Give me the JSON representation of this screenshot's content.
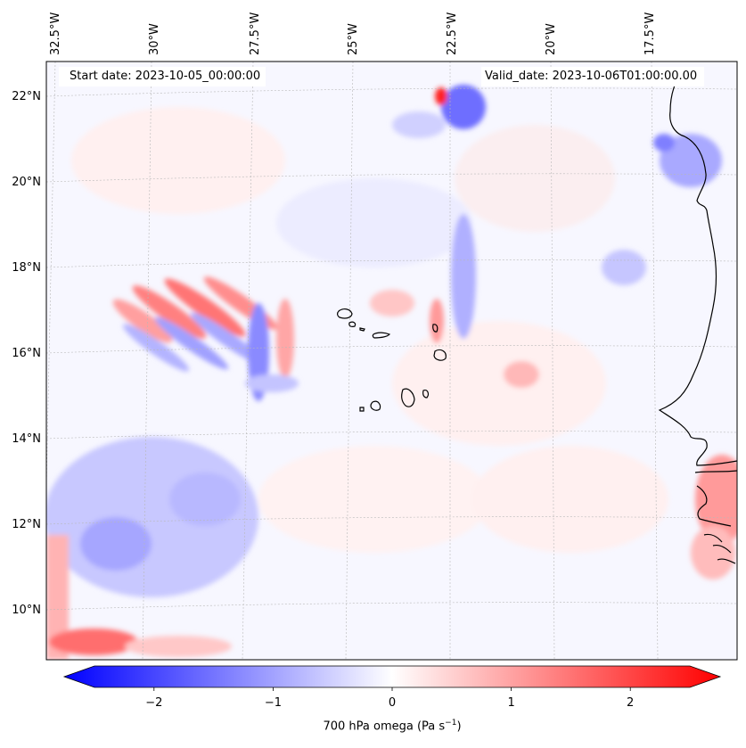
{
  "header": {
    "start_label": "Start date: 2023-10-05_00:00:00",
    "valid_label": "Valid_date: 2023-10-06T01:00:00.00"
  },
  "longitude_labels": [
    "32.5°W",
    "30°W",
    "27.5°W",
    "25°W",
    "22.5°W",
    "20°W",
    "17.5°W"
  ],
  "latitude_labels": [
    "22°N",
    "20°N",
    "18°N",
    "16°N",
    "14°N",
    "12°N",
    "10°N"
  ],
  "colorbar": {
    "title": "700 hPa omega (Pa s",
    "title_exponent": "−1",
    "title_close": ")",
    "range": [
      -2.5,
      2.5
    ],
    "ticks": [
      "−2",
      "−1",
      "0",
      "1",
      "2"
    ],
    "tick_values": [
      -2,
      -1,
      0,
      1,
      2
    ],
    "low_color": "#0000ff",
    "mid_color": "#ffffff",
    "high_color": "#ff0000",
    "extend": "both"
  },
  "field": {
    "variable": "700 hPa omega",
    "units": "Pa s-1",
    "colormap": "bwr"
  }
}
